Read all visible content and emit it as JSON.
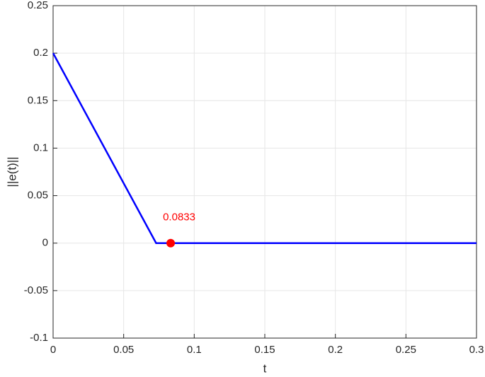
{
  "chart_data": {
    "type": "line",
    "xlabel": "t",
    "ylabel": "||e(t)||",
    "series": [
      {
        "color": "#0000ff",
        "x": [
          0,
          0.073,
          0.3
        ],
        "values": [
          0.2,
          0,
          0
        ]
      }
    ],
    "annotation": {
      "text": "0.0833",
      "x": 0.0833,
      "y": 0,
      "color": "#ff0000"
    },
    "xlim": [
      0,
      0.3
    ],
    "xticks": [
      0,
      0.05,
      0.1,
      0.15,
      0.2,
      0.25,
      0.3
    ],
    "ylim": [
      -0.1,
      0.25
    ],
    "yticks": [
      -0.1,
      -0.05,
      0,
      0.05,
      0.1,
      0.15,
      0.2,
      0.25
    ],
    "grid": true
  }
}
